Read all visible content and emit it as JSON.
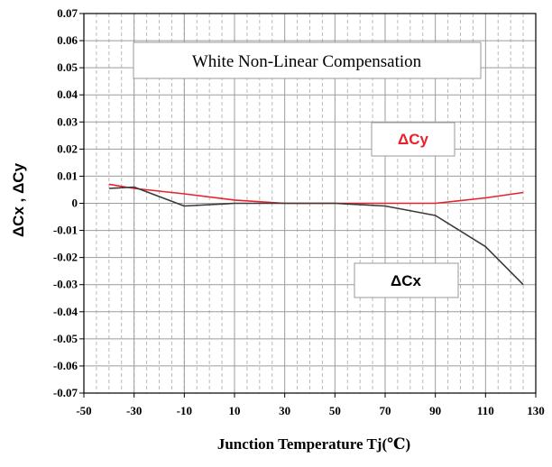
{
  "chart_data": {
    "type": "line",
    "title": "White Non-Linear Compensation",
    "xlabel": "Junction Temperature Tj(℃)",
    "ylabel": "ΔCx , ΔCy",
    "xlim": [
      -50,
      130
    ],
    "ylim": [
      -0.07,
      0.07
    ],
    "x_ticks": [
      "-50",
      "-30",
      "-10",
      "10",
      "30",
      "50",
      "70",
      "90",
      "110",
      "130"
    ],
    "y_ticks": [
      "0.07",
      "0.06",
      "0.05",
      "0.04",
      "0.03",
      "0.02",
      "0.01",
      "0",
      "-0.01",
      "-0.02",
      "-0.03",
      "-0.04",
      "-0.05",
      "-0.06",
      "-0.07"
    ],
    "grid": true,
    "series": [
      {
        "name": "ΔCy",
        "color": "#e8222a",
        "x": [
          -40,
          -30,
          -10,
          10,
          30,
          50,
          70,
          90,
          110,
          125
        ],
        "y": [
          0.007,
          0.0055,
          0.0035,
          0.0012,
          0.0,
          0.0,
          0.0,
          0.0,
          0.002,
          0.004
        ]
      },
      {
        "name": "ΔCx",
        "color": "#3a3a3a",
        "x": [
          -40,
          -30,
          -10,
          10,
          30,
          50,
          70,
          90,
          110,
          125
        ],
        "y": [
          0.0055,
          0.006,
          -0.001,
          0.0,
          0.0,
          0.0,
          -0.001,
          -0.0045,
          -0.016,
          -0.03
        ]
      }
    ]
  }
}
